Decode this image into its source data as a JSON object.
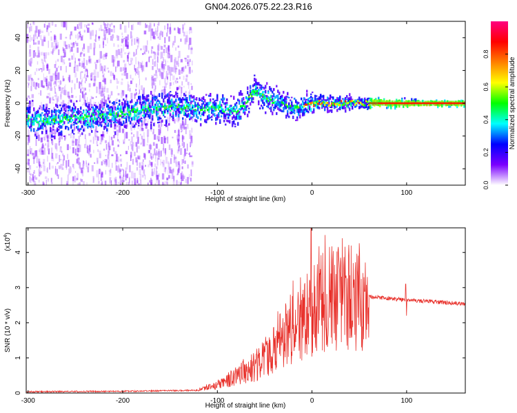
{
  "title": "GN04.2026.075.22.23.R16",
  "chart_data": [
    {
      "type": "heatmap",
      "xlabel": "Height of straight line (km)",
      "ylabel": "Frequency (Hz)",
      "xlim": [
        -302,
        162
      ],
      "ylim": [
        -50,
        50
      ],
      "xticks": [
        -300,
        -200,
        -100,
        0,
        100
      ],
      "yticks": [
        -40,
        -20,
        0,
        20,
        40
      ],
      "colorbar": {
        "label": "Normalized spectral amplitude",
        "range": [
          0,
          1
        ],
        "ticks": [
          0,
          0.2,
          0.4,
          0.6,
          0.8
        ],
        "tick_labels": [
          "0.0",
          "0.2",
          "0.4",
          "0.6",
          "0.8"
        ],
        "colormap": [
          "#ffffff",
          "#7a00ff",
          "#0000ff",
          "#00ffff",
          "#00ff00",
          "#ffff00",
          "#ff8000",
          "#ff0000",
          "#ff0080"
        ]
      },
      "ridge": {
        "description_points_x": [
          -300,
          -280,
          -250,
          -220,
          -200,
          -180,
          -160,
          -140,
          -120,
          -100,
          -90,
          -80,
          -70,
          -62,
          -55,
          -45,
          -35,
          -25,
          -15,
          -5,
          5,
          20,
          40,
          60,
          80,
          100,
          120,
          162
        ],
        "description_points_y": [
          -10,
          -11,
          -9,
          -8,
          -6,
          -4,
          -3,
          -2,
          -3,
          -3,
          -4,
          -5,
          0,
          8,
          5,
          2,
          0,
          -2,
          -3,
          -1,
          0,
          0,
          0,
          0,
          0,
          0,
          0,
          0
        ],
        "peak_amplitude_x_range": [
          0,
          162
        ],
        "peak_frequency": 0
      }
    },
    {
      "type": "line",
      "xlabel": "Height of straight line (km)",
      "ylabel": "SNR (10 * v/v)",
      "y_scale_label": "(x10",
      "y_scale_exponent": "4",
      "xlim": [
        -302,
        162
      ],
      "ylim": [
        0,
        4.7
      ],
      "xticks": [
        -300,
        -200,
        -100,
        0,
        100
      ],
      "yticks": [
        0,
        1,
        2,
        3,
        4
      ],
      "series": [
        {
          "name": "SNR",
          "color": "#e8302a",
          "envelope_x": [
            -302,
            -200,
            -120,
            -100,
            -80,
            -60,
            -40,
            -20,
            -5,
            0,
            10,
            30,
            50,
            60,
            80,
            100,
            130,
            162
          ],
          "envelope_y": [
            0.04,
            0.05,
            0.08,
            0.25,
            0.5,
            0.8,
            1.3,
            2.0,
            2.4,
            2.6,
            2.7,
            3.0,
            2.95,
            2.75,
            2.7,
            2.65,
            2.6,
            2.55
          ],
          "spikes": [
            {
              "x": -1,
              "y": 4.7
            },
            {
              "x": -20,
              "y": 3.2
            },
            {
              "x": 20,
              "y": 3.4
            },
            {
              "x": 40,
              "y": 3.35
            },
            {
              "x": 99,
              "y": 3.1
            },
            {
              "x": 100,
              "y": 2.2
            }
          ]
        }
      ]
    }
  ]
}
